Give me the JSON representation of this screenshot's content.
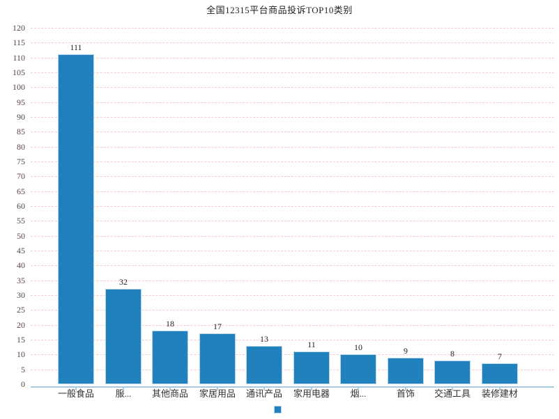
{
  "chart_data": {
    "type": "bar",
    "title": "全国12315平台商品投诉TOP10类别",
    "categories": [
      "一般食品",
      "服...",
      "其他商品",
      "家居用品",
      "通讯产品",
      "家用电器",
      "烟...",
      "首饰",
      "交通工具",
      "装修建材"
    ],
    "values": [
      111,
      32,
      18,
      17,
      13,
      11,
      10,
      9,
      8,
      7
    ],
    "value_labels": [
      "111",
      "32",
      "18",
      "17",
      "13",
      "11",
      "10",
      "9",
      "8",
      "7"
    ],
    "xlabel": "",
    "ylabel": "",
    "ylim": [
      0,
      120
    ],
    "ytick_step": 5,
    "grid": true,
    "grid_style": "dashed",
    "legend_position": "bottom-center",
    "legend_marker_only": true
  },
  "colors": {
    "bar_fill": "#2181bd",
    "bar_border": "#b5d5e9",
    "axis_line": "#a5cbe2",
    "gridline": "#f6caca",
    "y_tick_label": "#5c4646",
    "text": "#333333",
    "background": "#ffffff"
  }
}
